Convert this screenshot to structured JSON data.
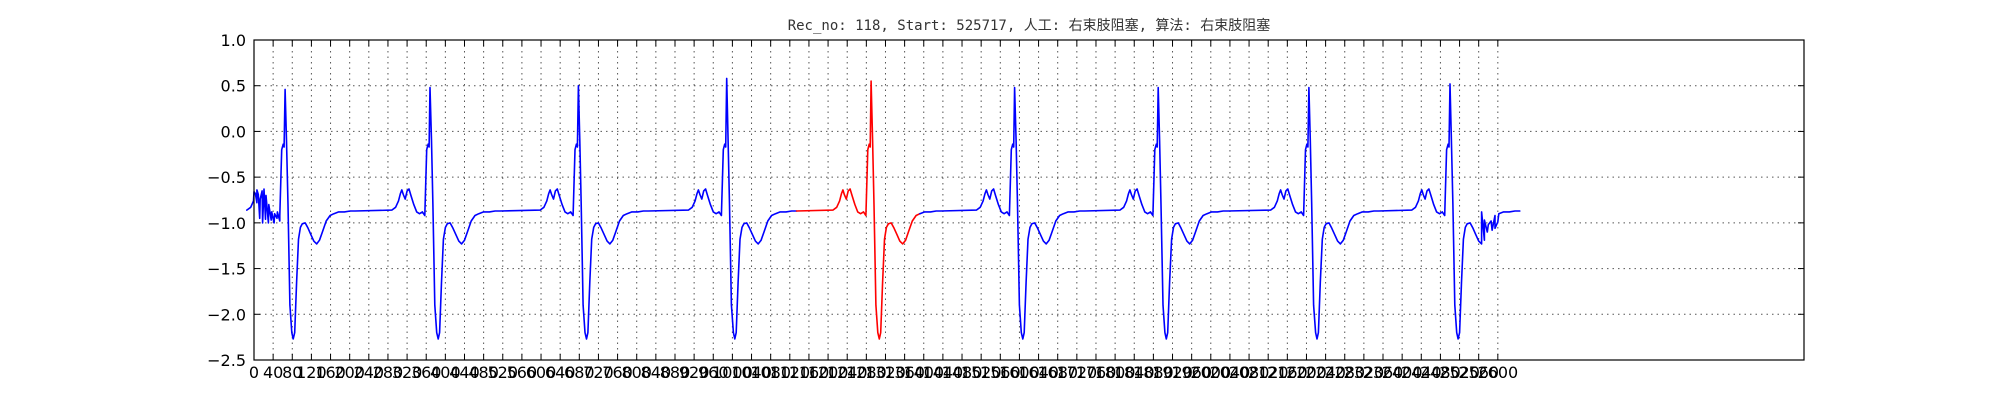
{
  "chart_data": {
    "type": "line",
    "title": "Rec_no: 118, Start: 525717, 人工: 右束肢阻塞, 算法: 右束肢阻塞",
    "xlabel": "",
    "ylabel": "",
    "xlim": [
      0,
      3240
    ],
    "ylim": [
      -2.5,
      1.0
    ],
    "grid": true,
    "x_ticks": [
      0,
      40,
      80,
      120,
      160,
      200,
      240,
      280,
      320,
      360,
      400,
      440,
      480,
      520,
      560,
      600,
      640,
      680,
      720,
      760,
      800,
      840,
      880,
      920,
      960,
      1000,
      1040,
      1080,
      1120,
      1160,
      1200,
      1240,
      1280,
      1320,
      1360,
      1400,
      1440,
      1480,
      1520,
      1560,
      1600,
      1640,
      1680,
      1720,
      1760,
      1800,
      1840,
      1880,
      1920,
      1960,
      2000,
      2040,
      2080,
      2120,
      2160,
      2200,
      2240,
      2280,
      2320,
      2360,
      2400,
      2440,
      2480,
      2520,
      2560,
      2600
    ],
    "x_tick_labels": [
      "0",
      "40",
      "80",
      "120",
      "160",
      "200",
      "240",
      "280",
      "320",
      "360",
      "400",
      "440",
      "480",
      "520",
      "560",
      "600",
      "640",
      "680",
      "720",
      "760",
      "800",
      "840",
      "880",
      "920",
      "960",
      "1000",
      "1040",
      "1080",
      "1120",
      "1160",
      "1200",
      "1240",
      "1280",
      "1320",
      "1360",
      "1400",
      "1440",
      "1480",
      "1520",
      "1560",
      "1600",
      "1640",
      "1680",
      "1720",
      "1760",
      "1800",
      "1840",
      "1880",
      "1920",
      "1960",
      "2000",
      "2040",
      "2080",
      "2120",
      "2160",
      "2200",
      "2240",
      "2280",
      "2320",
      "2360",
      "2400",
      "2440",
      "2480",
      "2520",
      "2560",
      "2600"
    ],
    "y_ticks": [
      1.0,
      0.5,
      0.0,
      -0.5,
      -1.0,
      -1.5,
      -2.0,
      -2.5
    ],
    "y_tick_labels": [
      "1.0",
      "0.5",
      "0.0",
      "−0.5",
      "−1.0",
      "−1.5",
      "−2.0",
      "−2.5"
    ],
    "beat_template": [
      [
        -80,
        -0.86
      ],
      [
        -72,
        -0.83
      ],
      [
        -66,
        -0.76
      ],
      [
        -62,
        -0.68
      ],
      [
        -59,
        -0.64
      ],
      [
        -56,
        -0.69
      ],
      [
        -52,
        -0.74
      ],
      [
        -48,
        -0.65
      ],
      [
        -44,
        -0.63
      ],
      [
        -40,
        -0.7
      ],
      [
        -34,
        -0.8
      ],
      [
        -28,
        -0.88
      ],
      [
        -22,
        -0.9
      ],
      [
        -16,
        -0.88
      ],
      [
        -11,
        -0.92
      ],
      [
        -7,
        -0.2
      ],
      [
        -4,
        -0.14
      ],
      [
        -2,
        -0.17
      ],
      [
        0,
        0.47
      ],
      [
        3,
        -0.1
      ],
      [
        6,
        -0.8
      ],
      [
        10,
        -1.9
      ],
      [
        14,
        -2.2
      ],
      [
        17,
        -2.27
      ],
      [
        20,
        -2.2
      ],
      [
        24,
        -1.65
      ],
      [
        28,
        -1.18
      ],
      [
        32,
        -1.05
      ],
      [
        36,
        -1.01
      ],
      [
        42,
        -1.0
      ],
      [
        48,
        -1.06
      ],
      [
        54,
        -1.13
      ],
      [
        60,
        -1.2
      ],
      [
        66,
        -1.23
      ],
      [
        72,
        -1.19
      ],
      [
        78,
        -1.1
      ],
      [
        86,
        -0.98
      ],
      [
        94,
        -0.92
      ],
      [
        102,
        -0.9
      ],
      [
        112,
        -0.88
      ],
      [
        124,
        -0.88
      ],
      [
        136,
        -0.87
      ],
      [
        146,
        -0.87
      ]
    ],
    "series": [
      {
        "color": "#0000ff",
        "beats": [
          {
            "r_peak": 65,
            "amplitude": 0.46
          },
          {
            "r_peak": 368,
            "amplitude": 0.48
          },
          {
            "r_peak": 678,
            "amplitude": 0.5
          },
          {
            "r_peak": 988,
            "amplitude": 0.58
          },
          {
            "r_peak": 1590,
            "amplitude": 0.48
          },
          {
            "r_peak": 1890,
            "amplitude": 0.48
          },
          {
            "r_peak": 2205,
            "amplitude": 0.48
          },
          {
            "r_peak": 2500,
            "amplitude": 0.52
          }
        ]
      },
      {
        "color": "#ff0000",
        "x_range": [
          1180,
          1400
        ],
        "beats": [
          {
            "r_peak": 1290,
            "amplitude": 0.55
          }
        ]
      }
    ],
    "trace_start": [
      [
        0,
        -0.66
      ],
      [
        6,
        -0.78
      ],
      [
        12,
        -0.95
      ],
      [
        18,
        -1.0
      ],
      [
        24,
        -0.96
      ],
      [
        30,
        -1.0
      ],
      [
        36,
        -0.97
      ],
      [
        42,
        -1.0
      ],
      [
        48,
        -0.95
      ],
      [
        54,
        -0.98
      ]
    ],
    "trace_end": [
      [
        2566,
        -0.88
      ],
      [
        2572,
        -0.97
      ],
      [
        2580,
        -1.02
      ],
      [
        2588,
        -1.08
      ],
      [
        2594,
        -1.06
      ],
      [
        2600,
        -0.99
      ]
    ],
    "colors": {
      "axis": "#000000",
      "grid": "#555555",
      "title": "#333333"
    }
  }
}
